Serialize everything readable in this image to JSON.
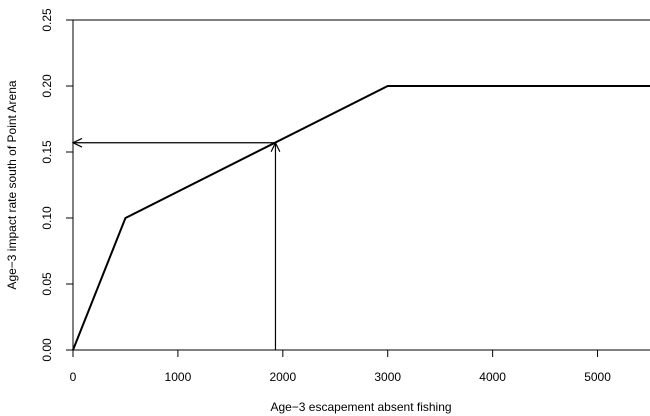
{
  "chart_data": {
    "type": "line",
    "title": "",
    "xlabel": "Age−3 escapement absent fishing",
    "ylabel": "Age−3 impact rate south of Point Arena",
    "xlim": [
      0,
      5500
    ],
    "ylim": [
      0,
      0.25
    ],
    "x_ticks": [
      0,
      1000,
      2000,
      3000,
      4000,
      5000
    ],
    "x_tick_labels": [
      "0",
      "1000",
      "2000",
      "3000",
      "4000",
      "5000"
    ],
    "y_ticks": [
      0,
      0.05,
      0.1,
      0.15,
      0.2,
      0.25
    ],
    "y_tick_labels": [
      "0.00",
      "0.05",
      "0.10",
      "0.15",
      "0.20",
      "0.25"
    ],
    "grid": false,
    "series": [
      {
        "x": [
          0,
          500,
          3000,
          5500
        ],
        "y": [
          0,
          0.1,
          0.2,
          0.2
        ],
        "color": "#000000"
      }
    ],
    "annotations": [
      {
        "type": "arrow",
        "from": [
          1930,
          0
        ],
        "to": [
          1930,
          0.157
        ]
      },
      {
        "type": "arrow",
        "from": [
          1930,
          0.157
        ],
        "to": [
          0,
          0.157
        ]
      }
    ]
  }
}
